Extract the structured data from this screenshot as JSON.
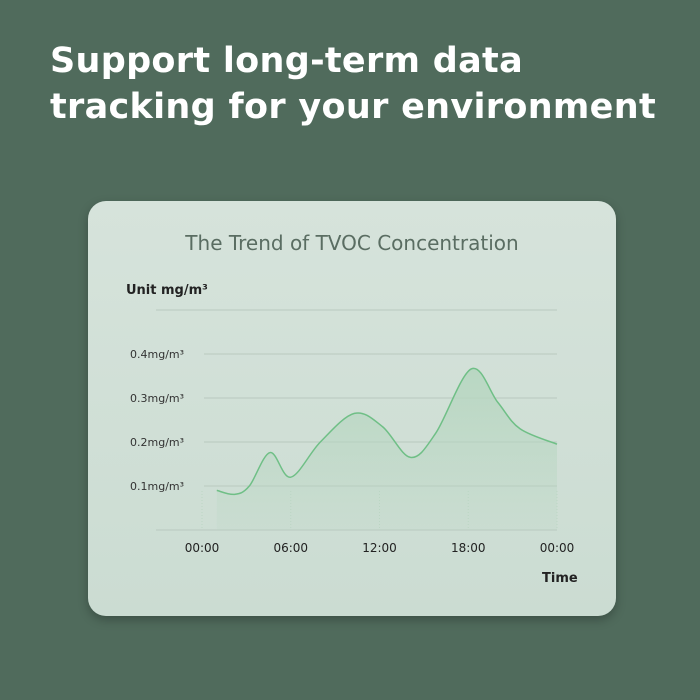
{
  "headline": [
    "Support long-term data",
    "tracking for your environment"
  ],
  "colors": {
    "background": "#506b5c",
    "card": "#d2e0d7",
    "line": "#6fbf86",
    "fill": "#b6d6c0"
  },
  "chart_data": {
    "type": "area",
    "title": "The Trend of TVOC Concentration",
    "ylabel": "Unit mg/m³",
    "xlabel": "Time",
    "x_ticks": [
      0,
      6,
      12,
      18,
      24
    ],
    "x_tick_labels": [
      "00:00",
      "06:00",
      "12:00",
      "18:00",
      "00:00"
    ],
    "y_ticks": [
      0.1,
      0.2,
      0.3,
      0.4
    ],
    "y_tick_labels": [
      "0.1mg/m³",
      "0.2mg/m³",
      "0.3mg/m³",
      "0.4mg/m³"
    ],
    "xlim": [
      0,
      24
    ],
    "ylim": [
      0,
      0.5
    ],
    "grid": true,
    "x_unit": "hour",
    "points": [
      [
        1.0,
        0.09
      ],
      [
        2.2,
        0.081
      ],
      [
        3.2,
        0.1
      ],
      [
        4.6,
        0.176
      ],
      [
        6.0,
        0.12
      ],
      [
        8.0,
        0.2
      ],
      [
        10.3,
        0.265
      ],
      [
        12.2,
        0.235
      ],
      [
        14.1,
        0.165
      ],
      [
        15.8,
        0.22
      ],
      [
        18.2,
        0.366
      ],
      [
        20.0,
        0.29
      ],
      [
        21.5,
        0.23
      ],
      [
        24.0,
        0.195
      ]
    ]
  }
}
